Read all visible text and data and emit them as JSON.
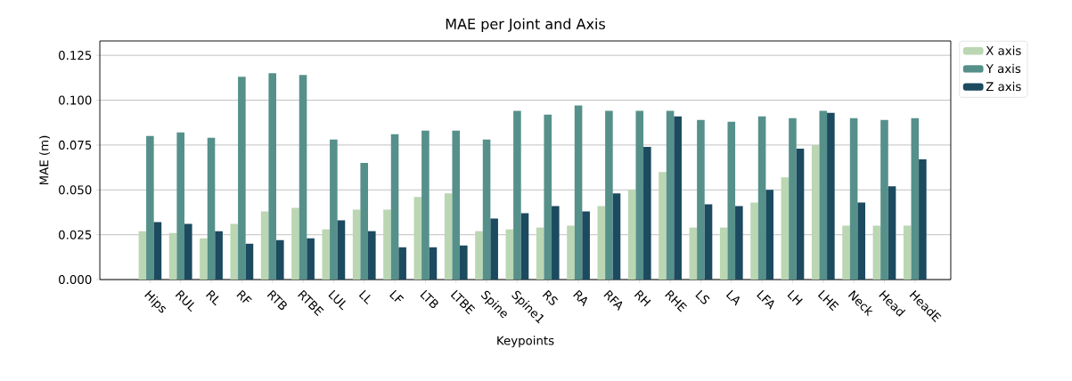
{
  "chart_data": {
    "type": "bar",
    "title": "MAE per Joint and Axis",
    "xlabel": "Keypoints",
    "ylabel": "MAE (m)",
    "categories": [
      "Hips",
      "RUL",
      "RL",
      "RF",
      "RTB",
      "RTBE",
      "LUL",
      "LL",
      "LF",
      "LTB",
      "LTBE",
      "Spine",
      "Spine1",
      "RS",
      "RA",
      "RFA",
      "RH",
      "RHE",
      "LS",
      "LA",
      "LFA",
      "LH",
      "LHE",
      "Neck",
      "Head",
      "HeadE"
    ],
    "series": [
      {
        "name": "X axis",
        "color": "#bad6b2",
        "values": [
          0.027,
          0.026,
          0.023,
          0.031,
          0.038,
          0.04,
          0.028,
          0.039,
          0.039,
          0.046,
          0.048,
          0.027,
          0.028,
          0.029,
          0.03,
          0.041,
          0.05,
          0.06,
          0.029,
          0.029,
          0.043,
          0.057,
          0.075,
          0.03,
          0.03,
          0.03
        ]
      },
      {
        "name": "Y axis",
        "color": "#56908a",
        "values": [
          0.08,
          0.082,
          0.079,
          0.113,
          0.115,
          0.114,
          0.078,
          0.065,
          0.081,
          0.083,
          0.083,
          0.078,
          0.094,
          0.092,
          0.097,
          0.094,
          0.094,
          0.094,
          0.089,
          0.088,
          0.091,
          0.09,
          0.094,
          0.09,
          0.089,
          0.09
        ]
      },
      {
        "name": "Z axis",
        "color": "#1c4a5f",
        "values": [
          0.032,
          0.031,
          0.027,
          0.02,
          0.022,
          0.023,
          0.033,
          0.027,
          0.018,
          0.018,
          0.019,
          0.034,
          0.037,
          0.041,
          0.038,
          0.048,
          0.074,
          0.091,
          0.042,
          0.041,
          0.05,
          0.073,
          0.093,
          0.043,
          0.052,
          0.067
        ]
      }
    ],
    "ylim": [
      0,
      0.133
    ],
    "yticks": [
      {
        "value": 0,
        "label": "0.000"
      },
      {
        "value": 0.025,
        "label": "0.025"
      },
      {
        "value": 0.05,
        "label": "0.050"
      },
      {
        "value": 0.075,
        "label": "0.075"
      },
      {
        "value": 0.1,
        "label": "0.100"
      },
      {
        "value": 0.125,
        "label": "0.125"
      }
    ],
    "grid": "y",
    "legend": "right"
  }
}
